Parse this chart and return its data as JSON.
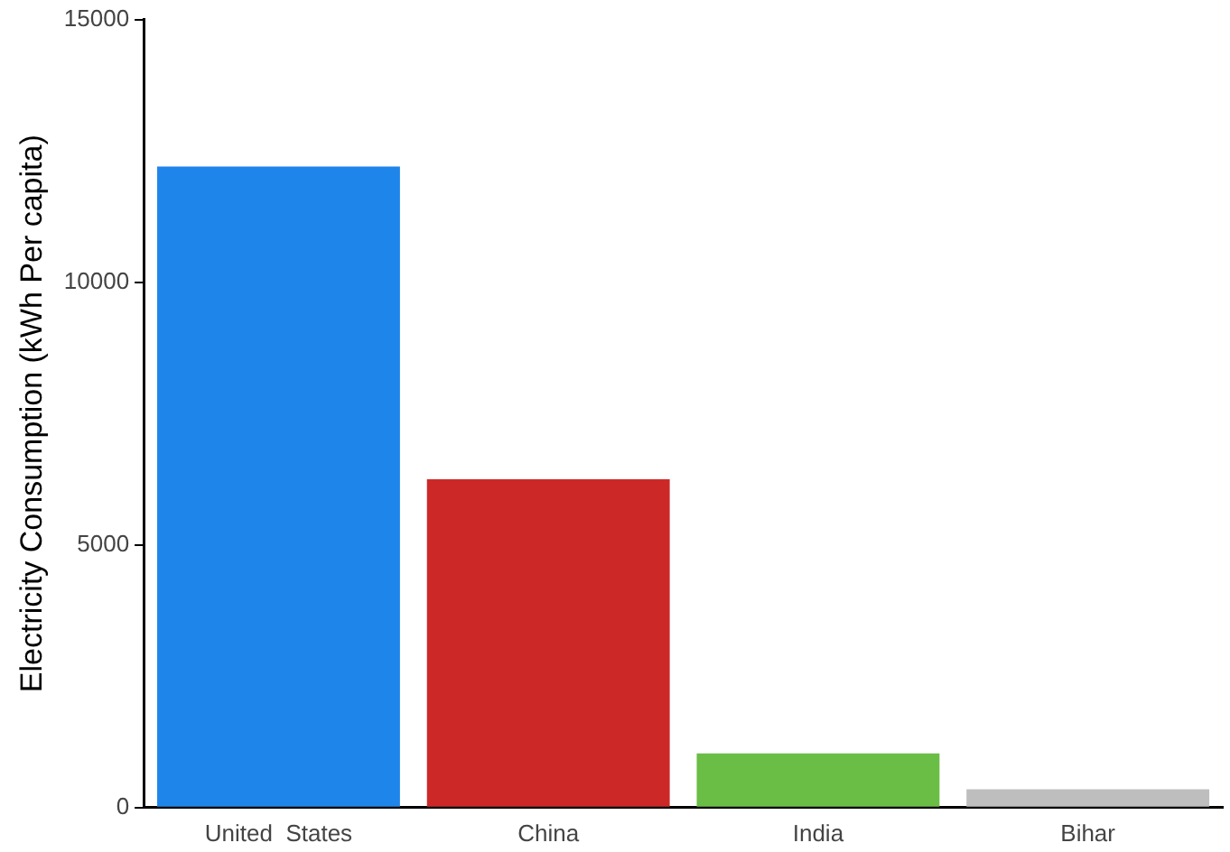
{
  "chart_data": {
    "type": "bar",
    "ylabel": "Electricity Consumption (kWh Per capita)",
    "categories": [
      "United  States",
      "China",
      "India",
      "Bihar"
    ],
    "values": [
      12200,
      6250,
      1030,
      350
    ],
    "colors": [
      "#1e85ea",
      "#cd2828",
      "#6abd45",
      "#bebebe"
    ],
    "ylim": [
      0,
      15000
    ],
    "yticks": [
      0,
      5000,
      10000,
      15000
    ],
    "grid": false,
    "legend": false
  }
}
